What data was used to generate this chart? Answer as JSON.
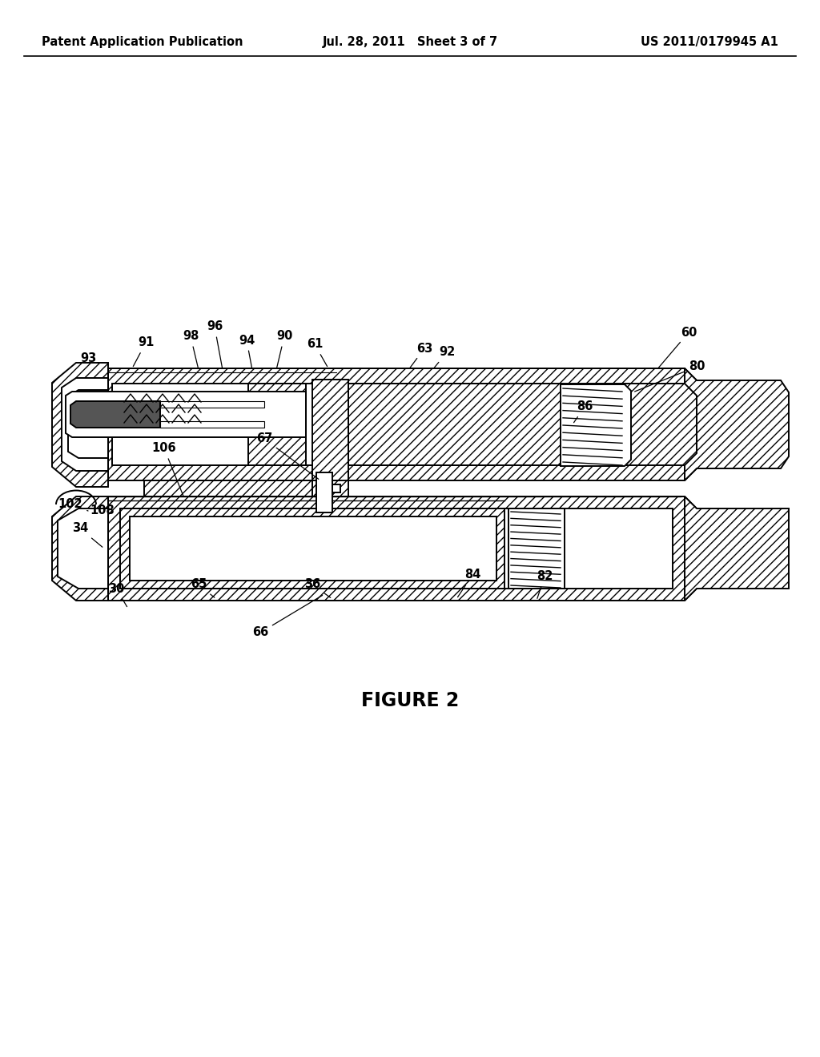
{
  "header_left": "Patent Application Publication",
  "header_mid": "Jul. 28, 2011   Sheet 3 of 7",
  "header_right": "US 2011/0179945 A1",
  "figure_label": "FIGURE 2",
  "bg_color": "#ffffff",
  "black": "#000000"
}
